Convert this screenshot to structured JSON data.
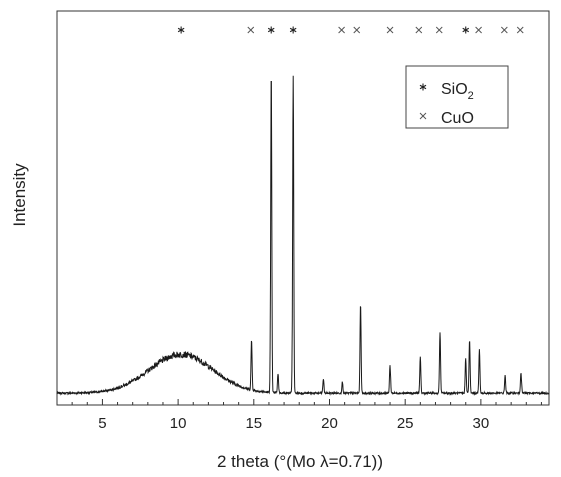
{
  "chart_data": {
    "type": "line",
    "xlabel": "2 theta (°(Mo λ=0.71))",
    "ylabel": "Intensity",
    "xlim": [
      2,
      34.5
    ],
    "ylim": [
      0,
      1.0
    ],
    "x_ticks": [
      5,
      10,
      15,
      20,
      25,
      30
    ],
    "y_ticks_visible": false,
    "grid": false,
    "background": {
      "level": 0.015,
      "hump_center": 10.2,
      "hump_height": 0.12,
      "hump_width": 2.1
    },
    "peaks": [
      {
        "x": 14.85,
        "y": 0.155
      },
      {
        "x": 16.15,
        "y": 1.0
      },
      {
        "x": 16.6,
        "y": 0.06
      },
      {
        "x": 17.6,
        "y": 0.985
      },
      {
        "x": 19.6,
        "y": 0.045
      },
      {
        "x": 20.85,
        "y": 0.035
      },
      {
        "x": 22.05,
        "y": 0.28
      },
      {
        "x": 24.0,
        "y": 0.085
      },
      {
        "x": 26.0,
        "y": 0.11
      },
      {
        "x": 27.3,
        "y": 0.19
      },
      {
        "x": 29.0,
        "y": 0.11
      },
      {
        "x": 29.25,
        "y": 0.165
      },
      {
        "x": 29.9,
        "y": 0.135
      },
      {
        "x": 31.6,
        "y": 0.055
      },
      {
        "x": 32.65,
        "y": 0.065
      }
    ],
    "markers": [
      {
        "series": "SiO2",
        "positions": [
          10.2,
          16.15,
          17.6,
          29.0
        ]
      },
      {
        "series": "CuO",
        "positions": [
          14.8,
          20.8,
          21.8,
          24.0,
          25.9,
          27.25,
          29.85,
          31.55,
          32.6
        ]
      }
    ],
    "legend": {
      "placement": "top-right",
      "entries": [
        {
          "symbol": "asterisk",
          "base": "SiO",
          "sub": "2"
        },
        {
          "symbol": "cross",
          "base": "CuO",
          "sub": ""
        }
      ]
    },
    "line_color": "#1a1a1a",
    "frame_color": "#333333",
    "marker_color": "#555555"
  }
}
